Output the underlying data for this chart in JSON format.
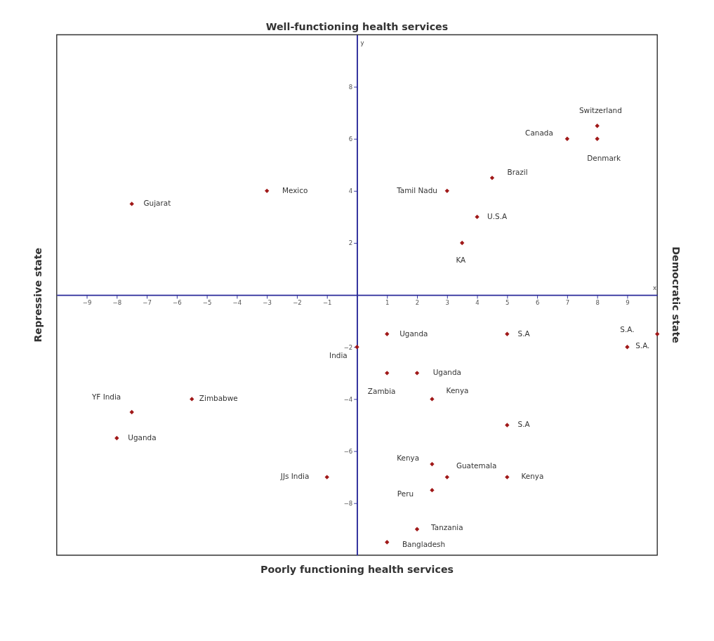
{
  "chart_data": {
    "type": "scatter",
    "title": "Well-functioning health services",
    "xlabel": "x",
    "ylabel": "y",
    "xlim": [
      -10,
      10
    ],
    "ylim": [
      -10,
      10
    ],
    "xticks": [
      -9,
      -8,
      -7,
      -6,
      -5,
      -4,
      -3,
      -2,
      -1,
      1,
      2,
      3,
      4,
      5,
      6,
      7,
      8,
      9
    ],
    "yticks": [
      -8,
      -6,
      -4,
      -2,
      2,
      4,
      6,
      8
    ],
    "grid": false,
    "marker": "diamond",
    "series": [
      {
        "color": "#a01818",
        "x": [
          -7.5,
          -3,
          3,
          4.5,
          4,
          3.5,
          7,
          8,
          8,
          1,
          5,
          9,
          10,
          0,
          1,
          2,
          2.5,
          5,
          -7.5,
          -5.5,
          -8,
          -1,
          2.5,
          3,
          5,
          2.5,
          2,
          1
        ],
        "values": [
          3.5,
          4,
          4,
          4.5,
          3,
          2,
          6,
          6.5,
          6,
          -1.5,
          -1.5,
          -2,
          -1.5,
          -2,
          -3,
          -3,
          -4,
          -5,
          -4.5,
          -4,
          -5.5,
          -7,
          -6.5,
          -7,
          -7,
          -7.5,
          -9,
          -9.5
        ]
      }
    ],
    "annotations": [
      "Poorly functioning health services",
      "Repressive state",
      "Democratic state",
      {
        "text": "Gujarat",
        "x": -7.5,
        "y": 3.5
      },
      {
        "text": "Mexico",
        "x": -3,
        "y": 4
      },
      {
        "text": "Tamil Nadu",
        "x": 3,
        "y": 4
      },
      {
        "text": "Brazil",
        "x": 4.5,
        "y": 4.5
      },
      {
        "text": "U.S.A",
        "x": 4,
        "y": 3
      },
      {
        "text": "KA",
        "x": 3.5,
        "y": 2
      },
      {
        "text": "Canada",
        "x": 7,
        "y": 6
      },
      {
        "text": "Switzerland",
        "x": 8,
        "y": 6.5
      },
      {
        "text": "Denmark",
        "x": 8,
        "y": 6
      },
      {
        "text": "Uganda",
        "x": 1,
        "y": -1.5
      },
      {
        "text": "S.A",
        "x": 5,
        "y": -1.5
      },
      {
        "text": "S.A.",
        "x": 9,
        "y": -2
      },
      {
        "text": "S.A.",
        "x": 10,
        "y": -1.5
      },
      {
        "text": "India",
        "x": 0,
        "y": -2
      },
      {
        "text": "Zambia",
        "x": 1,
        "y": -3
      },
      {
        "text": "Uganda",
        "x": 2,
        "y": -3
      },
      {
        "text": "Kenya",
        "x": 2.5,
        "y": -4
      },
      {
        "text": "S.A",
        "x": 5,
        "y": -5
      },
      {
        "text": "YF India",
        "x": -7.5,
        "y": -4.5
      },
      {
        "text": "Zimbabwe",
        "x": -5.5,
        "y": -4
      },
      {
        "text": "Uganda",
        "x": -8,
        "y": -5.5
      },
      {
        "text": "JJs India",
        "x": -1,
        "y": -7
      },
      {
        "text": "Kenya",
        "x": 2.5,
        "y": -6.5
      },
      {
        "text": "Guatemala",
        "x": 3,
        "y": -7
      },
      {
        "text": "Kenya",
        "x": 5,
        "y": -7
      },
      {
        "text": "Peru",
        "x": 2.5,
        "y": -7.5
      },
      {
        "text": "Tanzania",
        "x": 2,
        "y": -9
      },
      {
        "text": "Bangladesh",
        "x": 1,
        "y": -9.5
      }
    ]
  }
}
